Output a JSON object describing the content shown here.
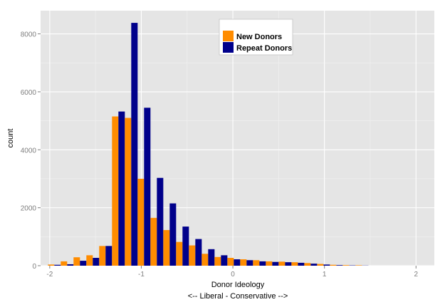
{
  "chart_data": {
    "type": "bar",
    "title": "",
    "xlabel": "Donor Ideology",
    "xlabel_sub": "<-- Liberal - Conservative -->",
    "ylabel": "count",
    "xlim": [
      -2.1,
      2.2
    ],
    "ylim": [
      0,
      8800
    ],
    "x_ticks": [
      -2,
      -1,
      0,
      1,
      2
    ],
    "x_tick_labels": [
      "-2",
      "-1",
      "0",
      "1",
      "2"
    ],
    "y_ticks": [
      0,
      2000,
      4000,
      6000,
      8000
    ],
    "y_tick_labels": [
      "0",
      "2000",
      "4000",
      "6000",
      "8000"
    ],
    "bin_width": 0.14,
    "bin_centers": [
      -1.95,
      -1.81,
      -1.67,
      -1.53,
      -1.39,
      -1.25,
      -1.11,
      -0.97,
      -0.83,
      -0.69,
      -0.55,
      -0.41,
      -0.27,
      -0.13,
      0.01,
      0.15,
      0.29,
      0.43,
      0.57,
      0.71,
      0.85,
      0.99,
      1.13,
      1.27,
      1.41
    ],
    "series": [
      {
        "name": "New Donors",
        "color": "#ff8c00",
        "values": [
          40,
          150,
          290,
          360,
          680,
          5150,
          5100,
          3000,
          1650,
          1230,
          820,
          700,
          410,
          300,
          270,
          220,
          190,
          150,
          140,
          120,
          90,
          60,
          30,
          20,
          15
        ]
      },
      {
        "name": "Repeat Donors",
        "color": "#00008b",
        "values": [
          30,
          50,
          170,
          270,
          680,
          5320,
          8380,
          5450,
          3030,
          2150,
          1350,
          920,
          570,
          360,
          220,
          190,
          150,
          130,
          120,
          100,
          70,
          40,
          20,
          10,
          5
        ]
      }
    ],
    "grid": true,
    "legend_position": "top-center"
  }
}
